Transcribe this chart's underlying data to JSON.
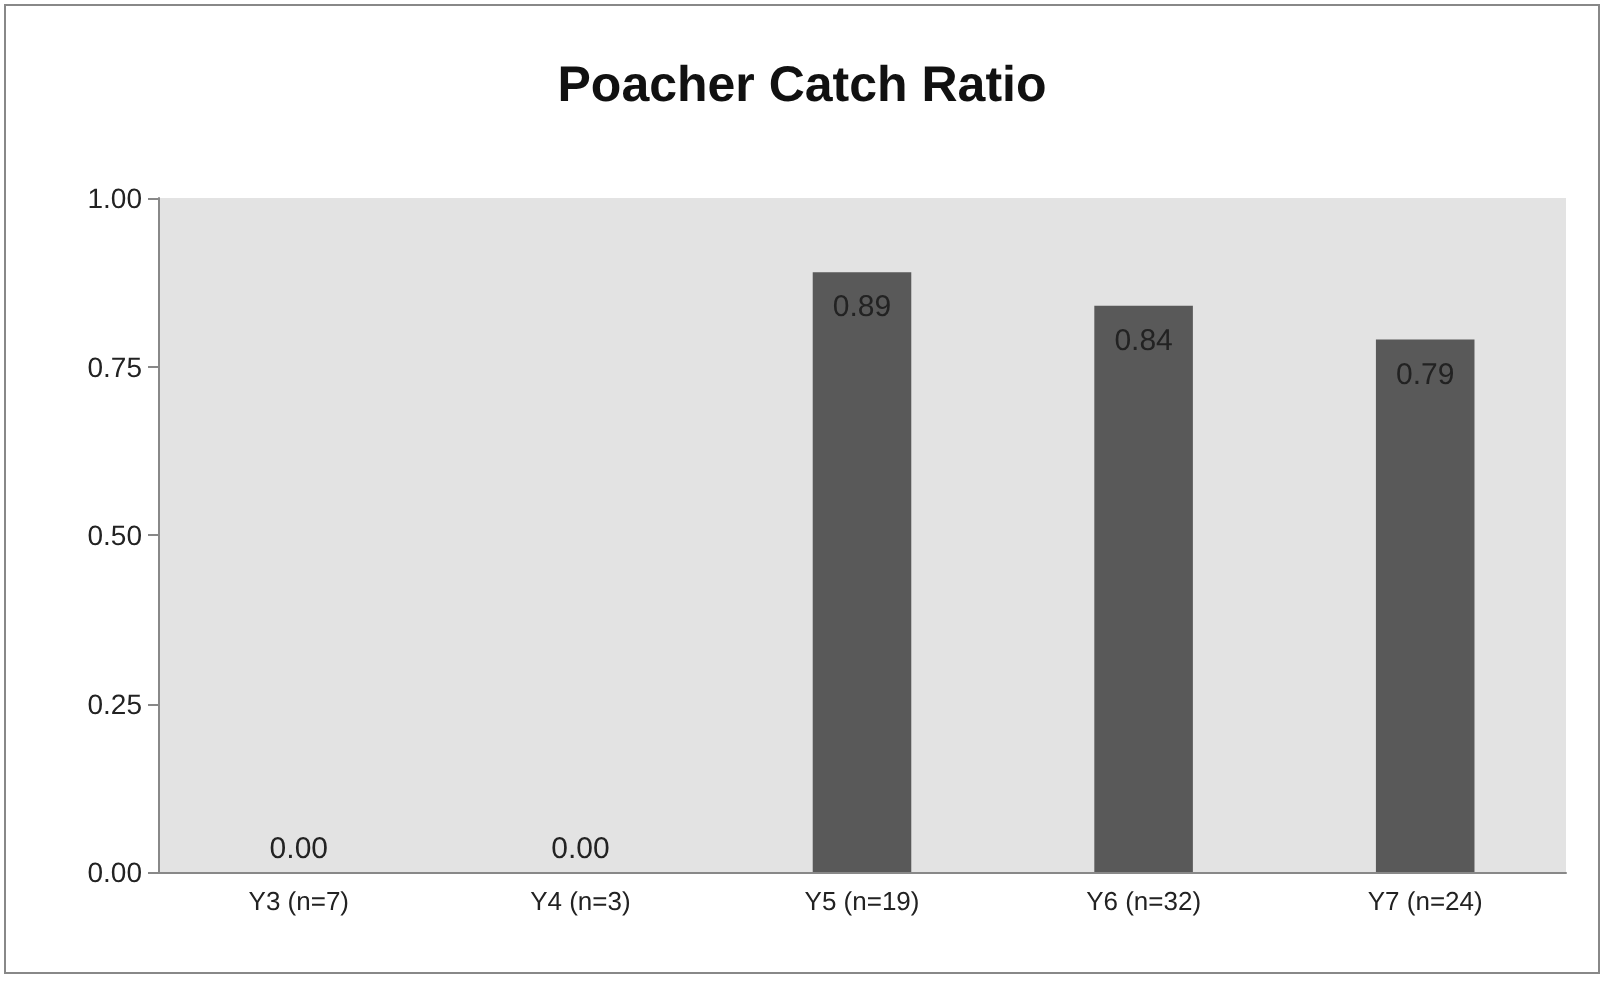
{
  "chart_data": {
    "type": "bar",
    "title": "Poacher Catch Ratio",
    "categories": [
      "Y3 (n=7)",
      "Y4 (n=3)",
      "Y5 (n=19)",
      "Y6 (n=32)",
      "Y7 (n=24)"
    ],
    "values": [
      0,
      0,
      0.89,
      0.84,
      0.79
    ],
    "value_labels": [
      "0.00",
      "0.00",
      "0.89",
      "0.84",
      "0.79"
    ],
    "color": "#595959",
    "ylim": [
      0,
      1
    ],
    "yticks": [
      {
        "value": 0,
        "label": "0.00"
      },
      {
        "value": 0.25,
        "label": "0.25"
      },
      {
        "value": 0.5,
        "label": "0.50"
      },
      {
        "value": 0.75,
        "label": "0.75"
      },
      {
        "value": 1,
        "label": "1.00"
      }
    ],
    "grid": false
  }
}
